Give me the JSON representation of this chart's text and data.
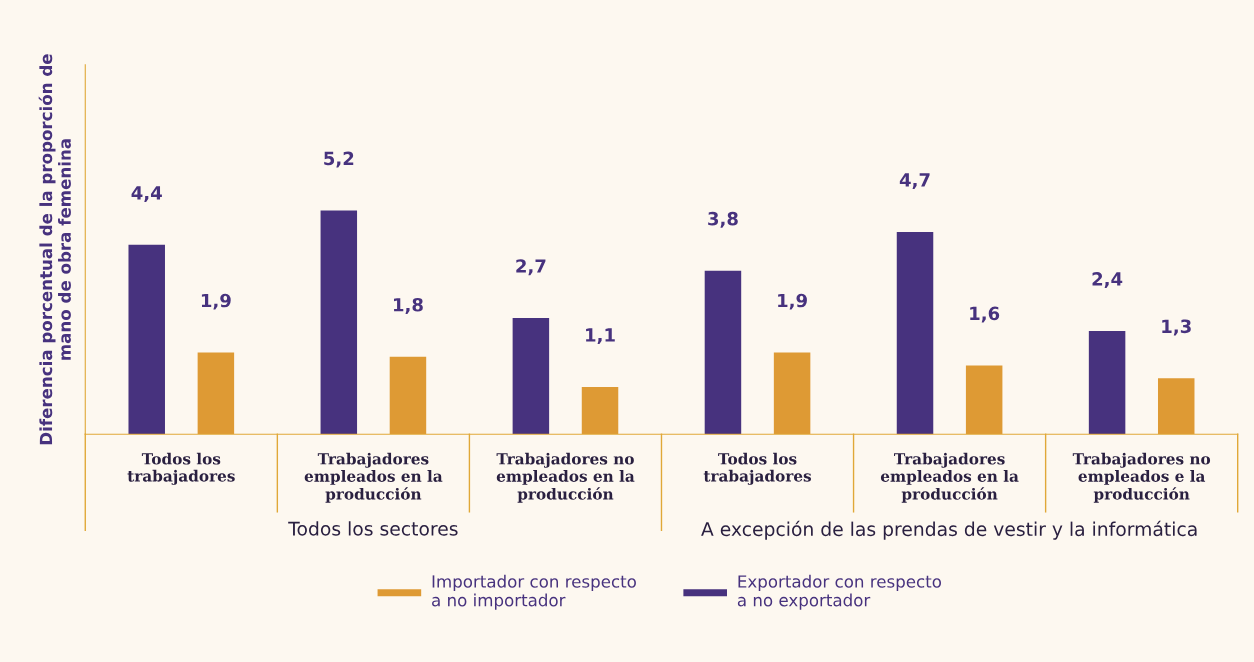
{
  "chart_data": {
    "type": "bar",
    "ylabel": "Diferencia porcentual de la proporción de\nmano de obra femenina",
    "categories": [
      "Todos los\ntrabajadores",
      "Trabajadores\nempleados en la\nproducción",
      "Trabajadores no\nempleados en la\nproducción",
      "Todos los\ntrabajadores",
      "Trabajadores\nempleados en la\nproducción",
      "Trabajadores no\nempleados e la\nproducción"
    ],
    "series": [
      {
        "name": "Exportador con respecto\na no exportador",
        "color": "#47327e",
        "values": [
          4.4,
          5.2,
          2.7,
          3.8,
          4.7,
          2.4
        ],
        "value_labels": [
          "4,4",
          "5,2",
          "2,7",
          "3,8",
          "4,7",
          "2,4"
        ]
      },
      {
        "name": "Importador con respecto\na no importador",
        "color": "#de9a34",
        "values": [
          1.9,
          1.8,
          1.1,
          1.9,
          1.6,
          1.3
        ],
        "value_labels": [
          "1,9",
          "1,8",
          "1,1",
          "1,9",
          "1,6",
          "1,3"
        ]
      }
    ],
    "annotations": [
      "Todos los sectores",
      "A excepción de las prendas de vestir y la informática"
    ],
    "legend": "bottom"
  }
}
